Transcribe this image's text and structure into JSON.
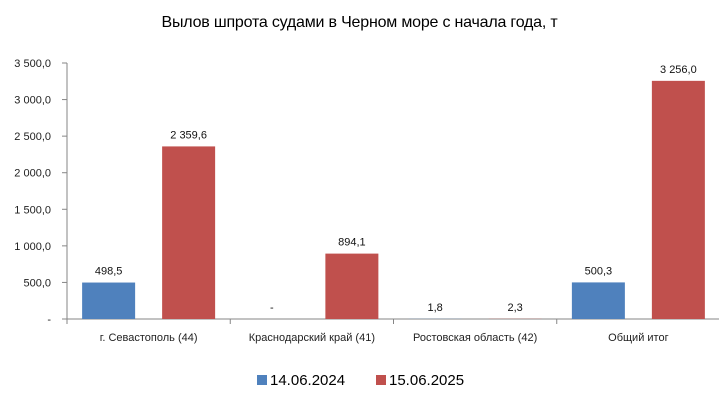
{
  "chart_data": {
    "type": "bar",
    "title": "Вылов шпрота судами в Черном море с начала  года, т",
    "xlabel": "",
    "ylabel": "",
    "categories": [
      "г. Севастополь (44)",
      "Краснодарский край (41)",
      "Ростовская область (42)",
      "Общий итог"
    ],
    "series": [
      {
        "name": "14.06.2024",
        "color": "#4F81BD",
        "values": [
          498.5,
          0,
          1.8,
          500.3
        ],
        "labels": [
          "498,5",
          "-",
          "1,8",
          "500,3"
        ]
      },
      {
        "name": "15.06.2025",
        "color": "#C0504D",
        "values": [
          2359.6,
          894.1,
          2.3,
          3256.0
        ],
        "labels": [
          "2 359,6",
          "894,1",
          "2,3",
          "3 256,0"
        ]
      }
    ],
    "ylim": [
      0,
      3500
    ],
    "yticks": [
      0,
      500,
      1000,
      1500,
      2000,
      2500,
      3000,
      3500
    ],
    "ytick_labels": [
      "-",
      "500,0",
      "1 000,0",
      "1 500,0",
      "2 000,0",
      "2 500,0",
      "3 000,0",
      "3 500,0"
    ],
    "grid": false,
    "legend_position": "bottom"
  }
}
